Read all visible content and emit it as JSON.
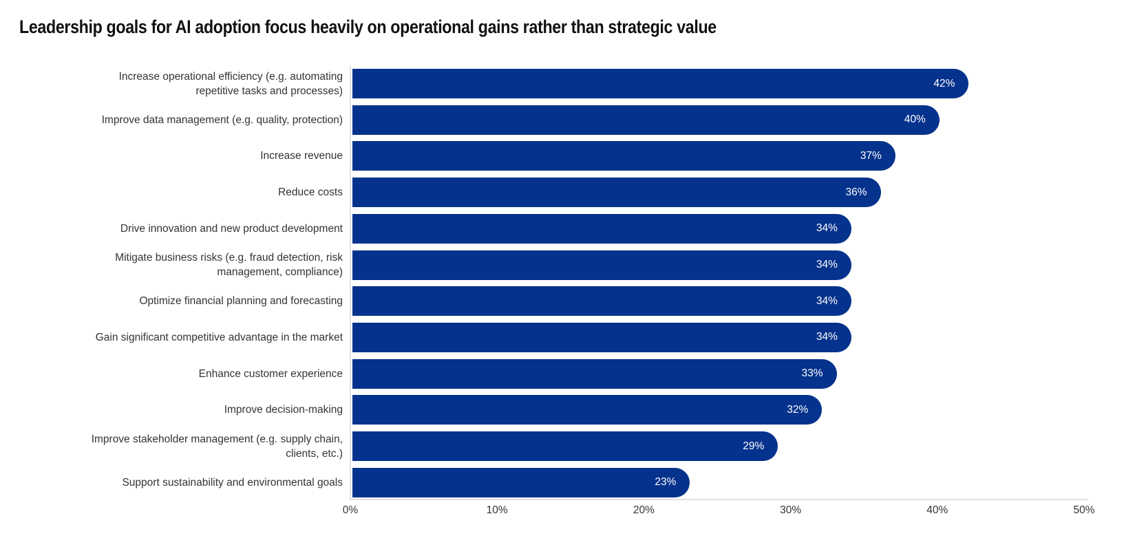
{
  "chart_data": {
    "type": "bar",
    "orientation": "horizontal",
    "title": "Leadership goals for AI adoption focus heavily on operational gains rather than strategic value",
    "categories": [
      "Increase operational efficiency (e.g. automating\nrepetitive tasks and processes)",
      "Improve data management (e.g. quality, protection)",
      "Increase revenue",
      "Reduce costs",
      "Drive innovation and new product development",
      "Mitigate business risks (e.g. fraud detection, risk\nmanagement, compliance)",
      "Optimize financial planning and forecasting",
      "Gain significant competitive advantage in the market",
      "Enhance customer experience",
      "Improve decision-making",
      "Improve stakeholder management (e.g. supply chain,\nclients, etc.)",
      "Support sustainability and environmental goals"
    ],
    "values": [
      42,
      40,
      37,
      36,
      34,
      34,
      34,
      34,
      33,
      32,
      29,
      23
    ],
    "value_labels": [
      "42%",
      "40%",
      "37%",
      "36%",
      "34%",
      "34%",
      "34%",
      "34%",
      "33%",
      "32%",
      "29%",
      "23%"
    ],
    "x_ticks": [
      "0%",
      "10%",
      "20%",
      "30%",
      "40%",
      "50%"
    ],
    "xlim": [
      0,
      50
    ],
    "xlabel": "",
    "ylabel": "",
    "grid": false,
    "legend_position": "none",
    "bar_color": "#05328C",
    "value_label_color": "#FFFFFF",
    "axis_line_color": "#E2E2E2",
    "label_color": "#333333"
  }
}
